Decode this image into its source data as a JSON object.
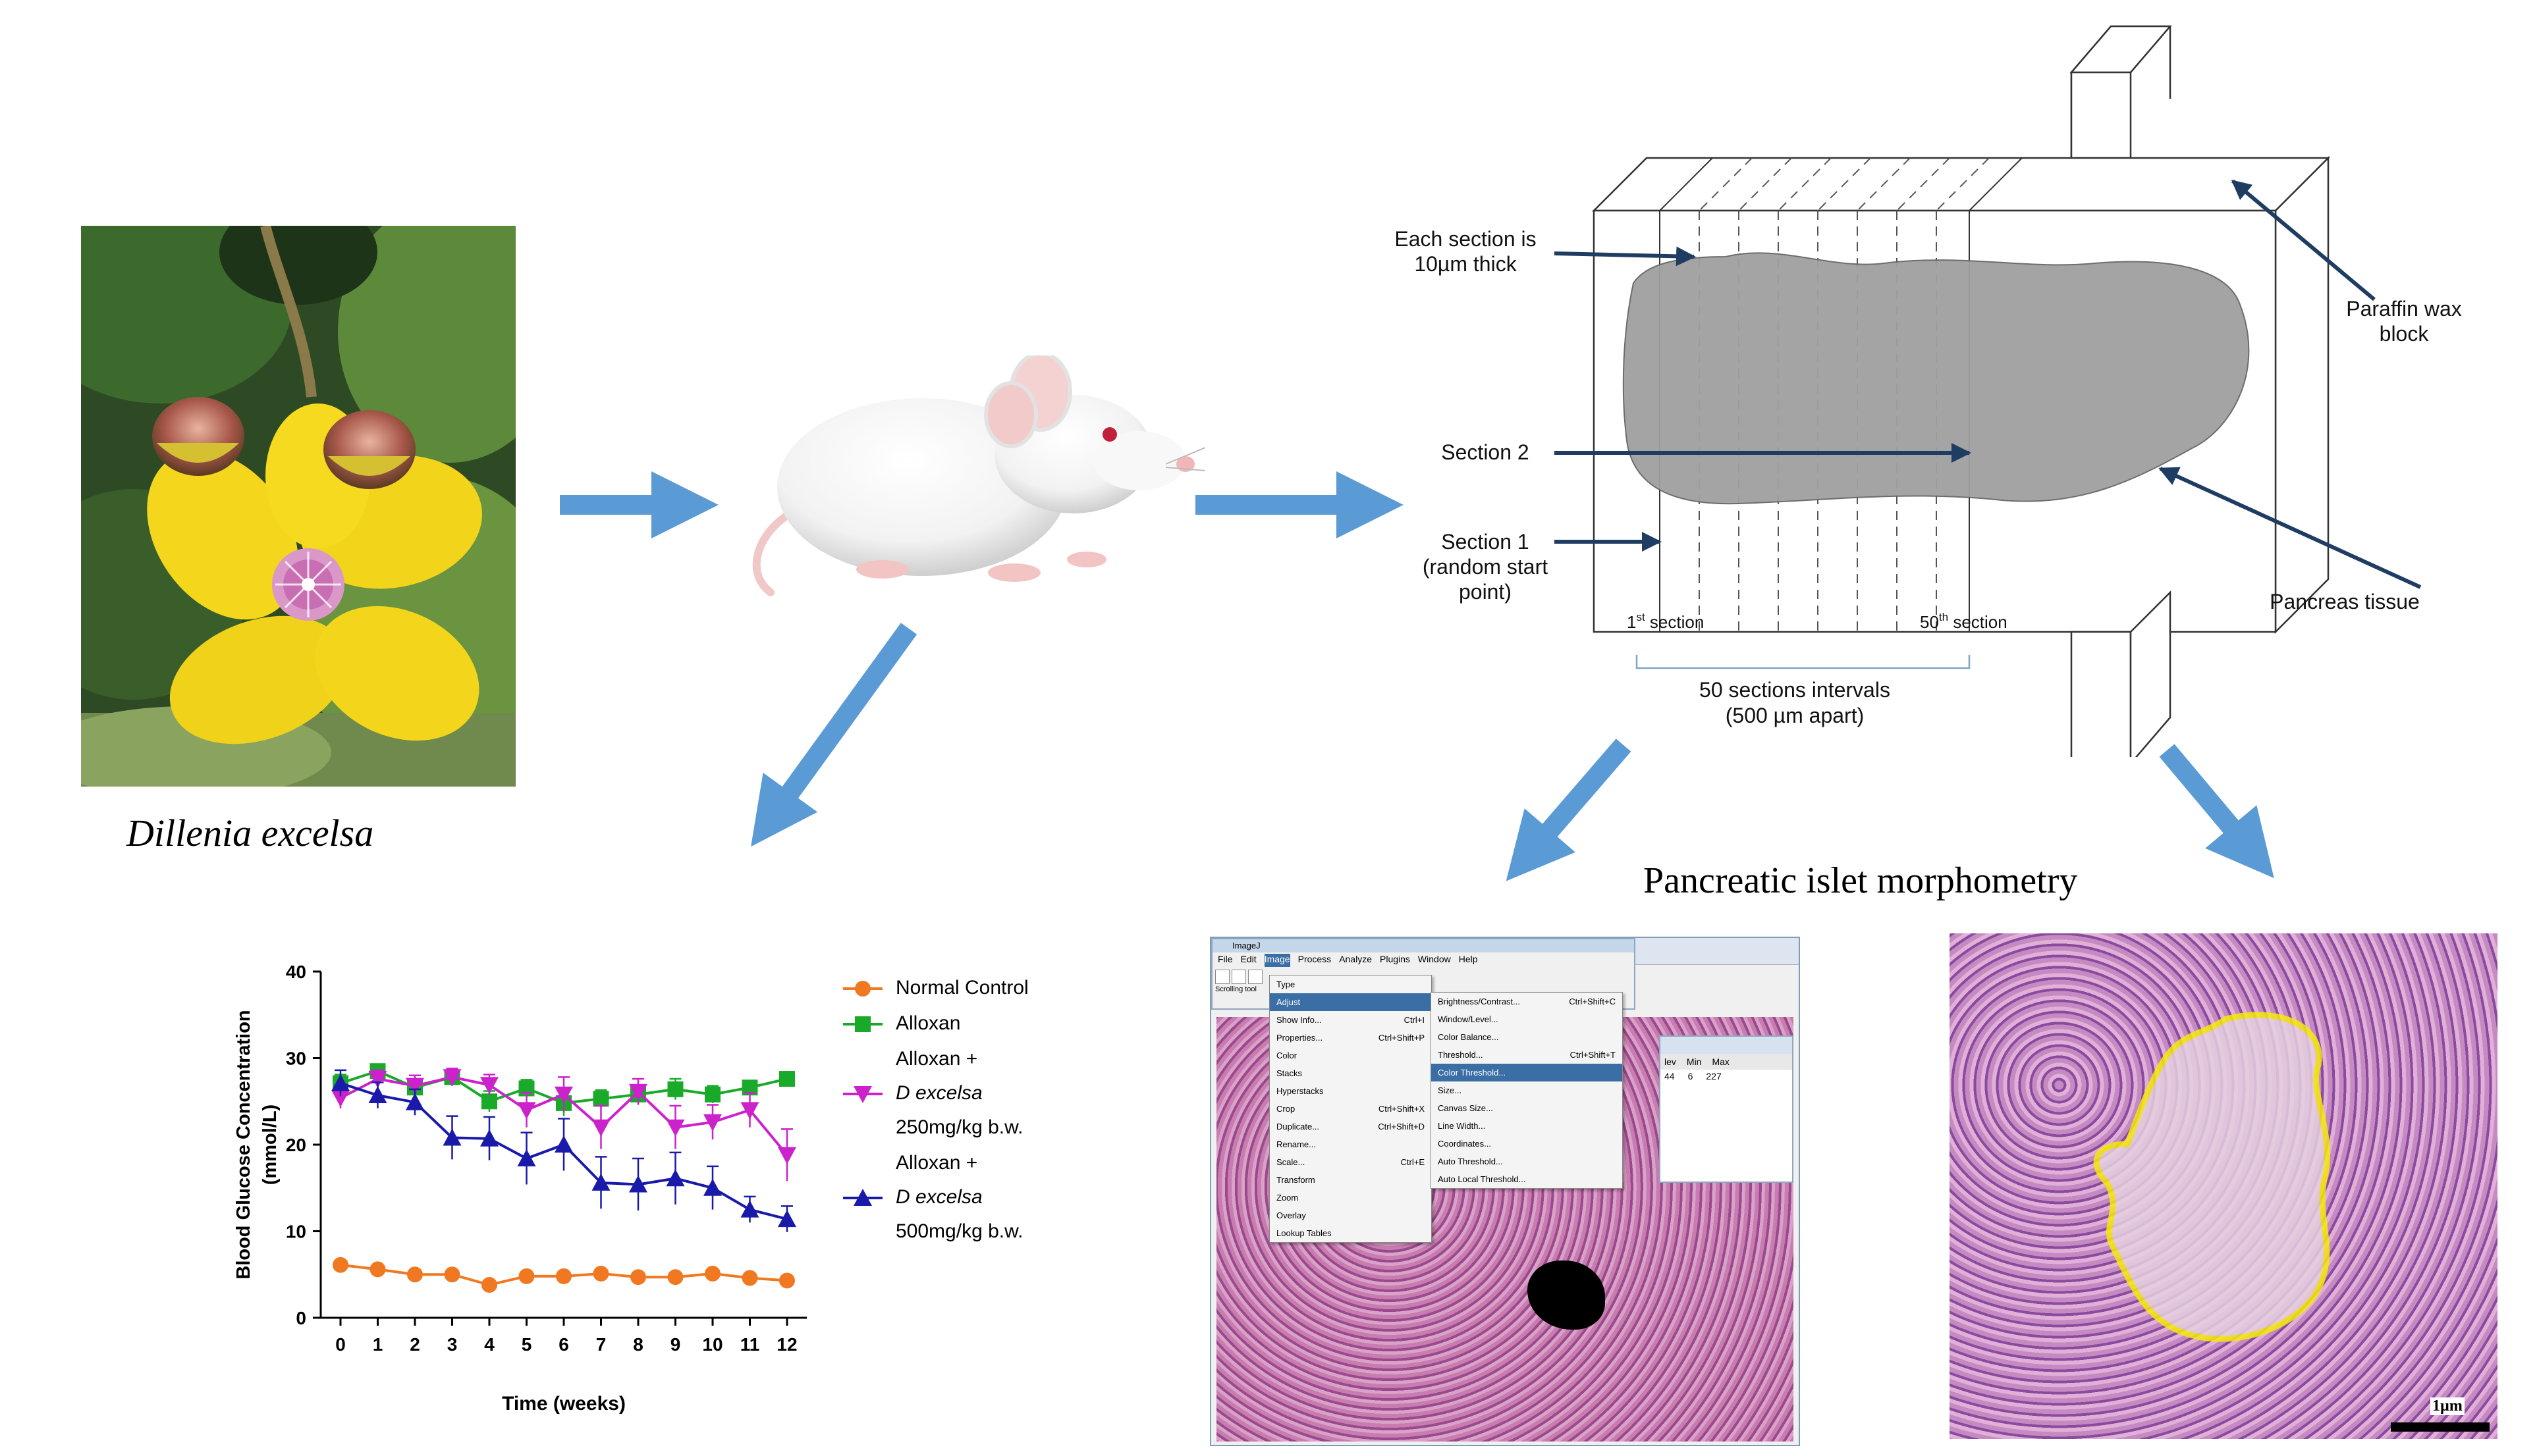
{
  "plant_caption": "Dillenia excelsa",
  "morphometry_title": "Pancreatic islet morphometry",
  "block_diagram": {
    "each_section": "Each section is",
    "thickness": "10µm thick",
    "section2": "Section 2",
    "section1": "Section 1",
    "random1": "(random start",
    "random2": "point)",
    "first_section_num": "1",
    "first_section_sup": "st",
    "first_section_word": " section",
    "last_section_num": "50",
    "last_section_sup": "th",
    "last_section_word": " section",
    "intervals": "50 sections intervals",
    "apart": "(500 µm apart)",
    "paraffin1": "Paraffin wax",
    "paraffin2": "block",
    "pancreas": "Pancreas tissue"
  },
  "imagej": {
    "title": "ImageJ",
    "menubar": [
      "File",
      "Edit",
      "Image",
      "Process",
      "Analyze",
      "Plugins",
      "Window",
      "Help"
    ],
    "status": "Scrolling tool",
    "image_menu": [
      "Type",
      "Adjust",
      "Show Info...",
      "Properties...",
      "Color",
      "Stacks",
      "Hyperstacks",
      "Crop",
      "Duplicate...",
      "Rename...",
      "Scale...",
      "Transform",
      "Zoom",
      "Overlay",
      "Lookup Tables"
    ],
    "image_menu_shortcuts": [
      "",
      "",
      "Ctrl+I",
      "Ctrl+Shift+P",
      "",
      "",
      "",
      "Ctrl+Shift+X",
      "Ctrl+Shift+D",
      "",
      "Ctrl+E",
      "",
      "",
      "",
      ""
    ],
    "adjust_menu": [
      "Brightness/Contrast...",
      "Window/Level...",
      "Color Balance...",
      "Threshold...",
      "Color Threshold...",
      "Size...",
      "Canvas Size...",
      "Line Width...",
      "Coordinates...",
      "Auto Threshold...",
      "Auto Local Threshold..."
    ],
    "adjust_shortcuts": [
      "Ctrl+Shift+C",
      "",
      "",
      "Ctrl+Shift+T",
      "",
      "",
      "",
      "",
      "",
      "",
      ""
    ],
    "results_headers": [
      "lev",
      "Min",
      "Max"
    ],
    "results_values": [
      "44",
      "6",
      "227"
    ]
  },
  "scale_bar_label": "1µm",
  "chart_data": {
    "type": "line",
    "title": "",
    "xlabel": "Time (weeks)",
    "ylabel": "Blood Glucose Concentration (mmol/L)",
    "xlim": [
      0,
      12
    ],
    "ylim": [
      0,
      40
    ],
    "x": [
      0,
      1,
      2,
      3,
      4,
      5,
      6,
      7,
      8,
      9,
      10,
      11,
      12
    ],
    "x_ticks": [
      "0",
      "1",
      "2",
      "3",
      "4",
      "5",
      "6",
      "7",
      "8",
      "9",
      "10",
      "11",
      "12"
    ],
    "y_ticks": [
      "0",
      "10",
      "20",
      "30",
      "40"
    ],
    "legend_position": "right",
    "series": [
      {
        "name": "Normal Control",
        "legend_lines": [
          "Normal Control"
        ],
        "color": "#f07820",
        "marker": "circle",
        "values": [
          6.1,
          5.6,
          5.0,
          5.0,
          3.8,
          4.8,
          4.8,
          5.1,
          4.7,
          4.7,
          5.1,
          4.6,
          4.3
        ],
        "errors": [
          0.3,
          0.3,
          0.3,
          0.3,
          0.3,
          0.3,
          0.3,
          0.3,
          0.3,
          0.3,
          0.3,
          0.3,
          0.3
        ]
      },
      {
        "name": "Alloxan",
        "legend_lines": [
          "Alloxan"
        ],
        "color": "#1aaa2a",
        "marker": "square",
        "values": [
          27.1,
          28.5,
          26.6,
          27.8,
          25.0,
          26.5,
          24.8,
          25.3,
          25.8,
          26.4,
          25.8,
          26.6,
          27.6
        ],
        "errors": [
          1.0,
          0.8,
          1.0,
          1.0,
          1.2,
          1.0,
          1.5,
          1.0,
          1.0,
          1.2,
          1.0,
          0.8,
          0.8
        ]
      },
      {
        "name": "Alloxan + D excelsa 250mg/kg b.w.",
        "legend_lines": [
          "Alloxan +",
          "D excelsa",
          "250mg/kg b.w."
        ],
        "color": "#cc22cc",
        "marker": "triangle-down",
        "values": [
          25.4,
          27.6,
          26.8,
          27.8,
          26.9,
          24.0,
          25.8,
          22.0,
          26.1,
          22.0,
          22.6,
          24.0,
          18.8
        ],
        "errors": [
          1.2,
          1.0,
          1.2,
          1.0,
          1.2,
          2.0,
          2.0,
          2.5,
          1.5,
          2.5,
          2.0,
          2.0,
          3.0
        ]
      },
      {
        "name": "Alloxan + D excelsa 500mg/kg b.w.",
        "legend_lines": [
          "Alloxan +",
          "D excelsa",
          "500mg/kg b.w."
        ],
        "color": "#1a1aaa",
        "marker": "triangle-up",
        "values": [
          27.1,
          25.7,
          24.9,
          20.8,
          20.7,
          18.4,
          20.0,
          15.6,
          15.4,
          16.1,
          15.0,
          12.5,
          11.4
        ],
        "errors": [
          1.5,
          1.5,
          1.5,
          2.5,
          2.5,
          3.0,
          3.0,
          3.0,
          3.0,
          3.0,
          2.5,
          1.5,
          1.5
        ]
      }
    ]
  }
}
